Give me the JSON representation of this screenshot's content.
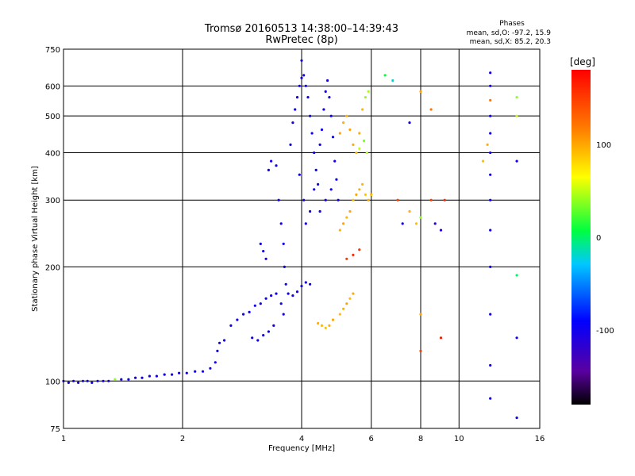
{
  "chart_data": {
    "type": "scatter",
    "title": "Tromsø 20160513 14:38:00–14:39:43",
    "subtitle": "RwPretec (8p)",
    "xlabel": "Frequency [MHz]",
    "ylabel": "Stationary phase Virtual Height [km]",
    "x_scale": "log",
    "y_scale": "log",
    "xlim": [
      1,
      16
    ],
    "ylim": [
      75,
      750
    ],
    "x_ticks": [
      1,
      2,
      4,
      6,
      8,
      10,
      16
    ],
    "y_ticks": [
      75,
      100,
      200,
      300,
      400,
      500,
      600,
      750
    ],
    "grid": true,
    "phase_box": {
      "title": "Phases",
      "line_o": "mean, sd,O: -97.2, 15.9",
      "line_x": "mean, sd,X:  85.2, 20.3"
    },
    "colorbar": {
      "label": "[deg]",
      "range": [
        -180,
        180
      ],
      "ticks": [
        100,
        0,
        -100
      ]
    },
    "series": [
      {
        "points": [
          [
            1.0,
            100,
            -100
          ],
          [
            1.03,
            99,
            -102
          ],
          [
            1.06,
            100,
            -98
          ],
          [
            1.09,
            99,
            -105
          ],
          [
            1.12,
            100,
            -100
          ],
          [
            1.15,
            100,
            -99
          ],
          [
            1.18,
            99,
            -101
          ],
          [
            1.22,
            100,
            -97
          ],
          [
            1.26,
            100,
            -103
          ],
          [
            1.3,
            100,
            -100
          ],
          [
            1.35,
            101,
            40
          ],
          [
            1.4,
            101,
            -100
          ],
          [
            1.46,
            101,
            -98
          ],
          [
            1.52,
            102,
            -101
          ],
          [
            1.58,
            102,
            -99
          ],
          [
            1.65,
            103,
            -100
          ],
          [
            1.72,
            103,
            -102
          ],
          [
            1.8,
            104,
            -98
          ],
          [
            1.88,
            104,
            -100
          ],
          [
            1.96,
            105,
            -101
          ],
          [
            2.05,
            105,
            -100
          ],
          [
            2.15,
            106,
            -99
          ],
          [
            2.25,
            106,
            -100
          ],
          [
            2.35,
            108,
            -98
          ],
          [
            2.42,
            112,
            -100
          ],
          [
            2.45,
            120,
            -101
          ],
          [
            2.48,
            126,
            -99
          ],
          [
            2.55,
            128,
            -100
          ],
          [
            2.65,
            140,
            -102
          ],
          [
            2.75,
            145,
            -100
          ],
          [
            2.85,
            150,
            -99
          ],
          [
            2.95,
            152,
            -98
          ],
          [
            3.05,
            158,
            -100
          ],
          [
            3.15,
            160,
            -101
          ],
          [
            3.25,
            165,
            -99
          ],
          [
            3.35,
            168,
            -100
          ],
          [
            3.45,
            170,
            -98
          ],
          [
            3.55,
            160,
            -100
          ],
          [
            3.6,
            150,
            -102
          ],
          [
            3.0,
            130,
            -100
          ],
          [
            3.1,
            128,
            -99
          ],
          [
            3.2,
            132,
            -101
          ],
          [
            3.3,
            135,
            -100
          ],
          [
            3.4,
            140,
            -100
          ],
          [
            3.15,
            230,
            -100
          ],
          [
            3.2,
            220,
            -99
          ],
          [
            3.25,
            210,
            -101
          ],
          [
            3.3,
            360,
            -100
          ],
          [
            3.35,
            380,
            -100
          ],
          [
            3.45,
            370,
            -99
          ],
          [
            3.5,
            300,
            -100
          ],
          [
            3.55,
            260,
            -101
          ],
          [
            3.6,
            230,
            -100
          ],
          [
            3.62,
            200,
            -99
          ],
          [
            3.65,
            180,
            -100
          ],
          [
            3.7,
            170,
            -98
          ],
          [
            3.8,
            168,
            -100
          ],
          [
            3.9,
            172,
            -101
          ],
          [
            4.0,
            178,
            -99
          ],
          [
            4.1,
            182,
            -100
          ],
          [
            4.2,
            180,
            -98
          ],
          [
            3.75,
            420,
            -100
          ],
          [
            3.8,
            480,
            -101
          ],
          [
            3.85,
            520,
            -99
          ],
          [
            3.9,
            560,
            -100
          ],
          [
            3.95,
            600,
            -100
          ],
          [
            4.0,
            630,
            -98
          ],
          [
            4.05,
            640,
            -101
          ],
          [
            4.1,
            600,
            -100
          ],
          [
            4.15,
            560,
            -99
          ],
          [
            4.2,
            500,
            -100
          ],
          [
            4.25,
            450,
            -100
          ],
          [
            4.3,
            400,
            -101
          ],
          [
            4.35,
            360,
            -99
          ],
          [
            4.4,
            330,
            -100
          ],
          [
            4.45,
            420,
            -100
          ],
          [
            4.5,
            460,
            -99
          ],
          [
            4.55,
            520,
            -100
          ],
          [
            4.6,
            580,
            -101
          ],
          [
            4.65,
            620,
            -100
          ],
          [
            4.7,
            560,
            -98
          ],
          [
            4.75,
            500,
            -100
          ],
          [
            4.8,
            440,
            -100
          ],
          [
            4.85,
            380,
            -101
          ],
          [
            4.9,
            340,
            -99
          ],
          [
            4.95,
            300,
            -100
          ],
          [
            3.95,
            350,
            -100
          ],
          [
            4.05,
            300,
            -101
          ],
          [
            4.1,
            260,
            -100
          ],
          [
            4.2,
            280,
            -99
          ],
          [
            4.3,
            320,
            -100
          ],
          [
            4.45,
            280,
            -100
          ],
          [
            4.6,
            300,
            -101
          ],
          [
            4.75,
            320,
            -99
          ],
          [
            4.0,
            700,
            -100
          ],
          [
            5.0,
            150,
            90
          ],
          [
            5.1,
            155,
            95
          ],
          [
            5.2,
            160,
            100
          ],
          [
            5.3,
            165,
            92
          ],
          [
            5.4,
            170,
            98
          ],
          [
            4.8,
            145,
            100
          ],
          [
            4.7,
            140,
            95
          ],
          [
            4.6,
            138,
            88
          ],
          [
            4.5,
            140,
            92
          ],
          [
            4.4,
            142,
            97
          ],
          [
            5.0,
            250,
            95
          ],
          [
            5.1,
            260,
            100
          ],
          [
            5.2,
            270,
            92
          ],
          [
            5.3,
            280,
            98
          ],
          [
            5.4,
            300,
            90
          ],
          [
            5.5,
            310,
            100
          ],
          [
            5.6,
            320,
            95
          ],
          [
            5.7,
            330,
            92
          ],
          [
            5.8,
            310,
            88
          ],
          [
            5.9,
            300,
            98
          ],
          [
            5.0,
            450,
            100
          ],
          [
            5.1,
            480,
            95
          ],
          [
            5.2,
            500,
            92
          ],
          [
            5.3,
            460,
            100
          ],
          [
            5.4,
            420,
            98
          ],
          [
            5.5,
            400,
            90
          ],
          [
            5.6,
            450,
            96
          ],
          [
            5.7,
            520,
            92
          ],
          [
            5.8,
            560,
            40
          ],
          [
            5.9,
            580,
            45
          ],
          [
            5.6,
            410,
            50
          ],
          [
            5.75,
            430,
            35
          ],
          [
            5.85,
            400,
            48
          ],
          [
            5.2,
            210,
            150
          ],
          [
            5.4,
            215,
            160
          ],
          [
            5.6,
            222,
            155
          ],
          [
            6.0,
            310,
            92
          ],
          [
            6.5,
            640,
            10
          ],
          [
            6.8,
            620,
            -20
          ],
          [
            7.0,
            300,
            150
          ],
          [
            7.2,
            260,
            -100
          ],
          [
            7.5,
            280,
            95
          ],
          [
            7.8,
            260,
            90
          ],
          [
            8.0,
            270,
            40
          ],
          [
            8.5,
            300,
            150
          ],
          [
            8.7,
            260,
            -120
          ],
          [
            9.0,
            250,
            -110
          ],
          [
            9.2,
            300,
            160
          ],
          [
            8.0,
            580,
            100
          ],
          [
            8.5,
            520,
            120
          ],
          [
            7.5,
            480,
            -100
          ],
          [
            12.0,
            90,
            -100
          ],
          [
            12.0,
            110,
            -100
          ],
          [
            12.0,
            150,
            -100
          ],
          [
            12.0,
            200,
            -100
          ],
          [
            12.0,
            250,
            -100
          ],
          [
            12.0,
            300,
            -100
          ],
          [
            12.0,
            350,
            -100
          ],
          [
            12.0,
            400,
            -100
          ],
          [
            12.0,
            450,
            -100
          ],
          [
            12.0,
            500,
            -100
          ],
          [
            12.0,
            550,
            120
          ],
          [
            12.0,
            600,
            -100
          ],
          [
            12.0,
            650,
            -100
          ],
          [
            11.5,
            380,
            90
          ],
          [
            11.8,
            420,
            95
          ],
          [
            14.0,
            560,
            40
          ],
          [
            14.0,
            500,
            50
          ],
          [
            14.0,
            380,
            -100
          ],
          [
            14.0,
            130,
            -100
          ],
          [
            14.0,
            190,
            0
          ],
          [
            14.0,
            80,
            -100
          ],
          [
            8.0,
            150,
            100
          ],
          [
            8.0,
            120,
            150
          ],
          [
            9.0,
            130,
            170
          ]
        ]
      }
    ]
  }
}
